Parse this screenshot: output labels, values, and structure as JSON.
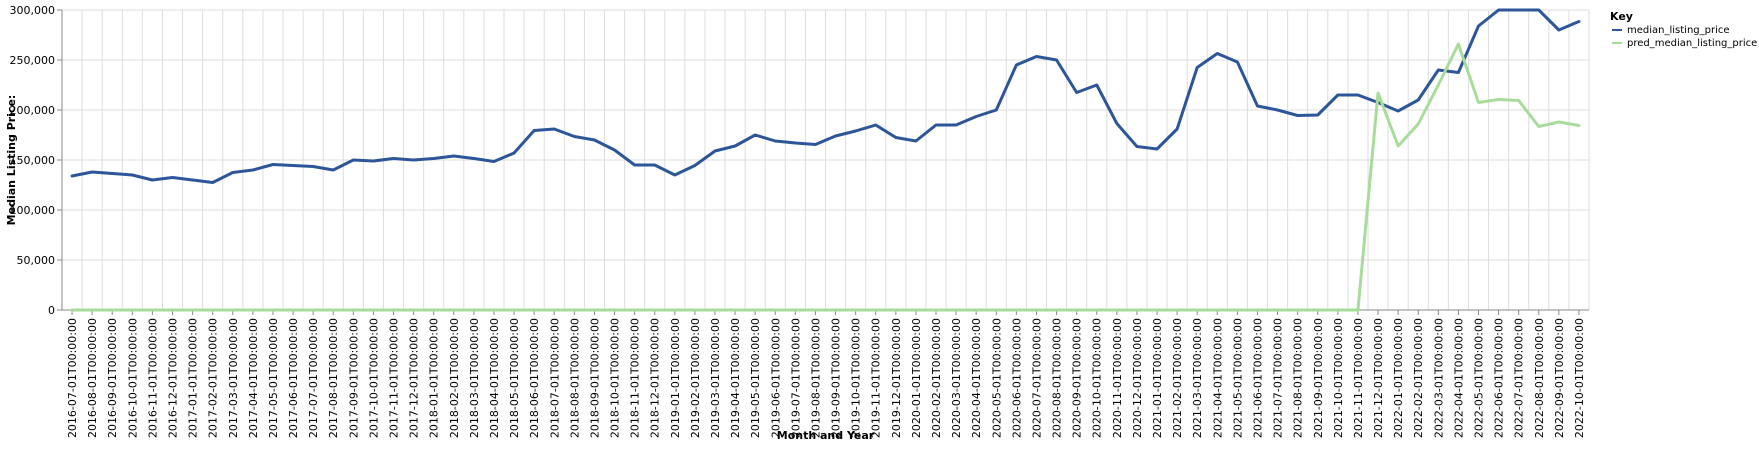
{
  "chart_data": {
    "type": "line",
    "title": "",
    "xlabel": "Month and Year",
    "ylabel": "Median Listing Price:",
    "ylim": [
      0,
      300000
    ],
    "yticks": [
      0,
      50000,
      100000,
      150000,
      200000,
      250000,
      300000
    ],
    "ytick_labels": [
      "0",
      "50,000",
      "100,000",
      "150,000",
      "200,000",
      "250,000",
      "300,000"
    ],
    "grid": true,
    "legend": {
      "title": "Key",
      "placement": "top-right"
    },
    "x": [
      "2016-07-01T00:00:00",
      "2016-08-01T00:00:00",
      "2016-09-01T00:00:00",
      "2016-10-01T00:00:00",
      "2016-11-01T00:00:00",
      "2016-12-01T00:00:00",
      "2017-01-01T00:00:00",
      "2017-02-01T00:00:00",
      "2017-03-01T00:00:00",
      "2017-04-01T00:00:00",
      "2017-05-01T00:00:00",
      "2017-06-01T00:00:00",
      "2017-07-01T00:00:00",
      "2017-08-01T00:00:00",
      "2017-09-01T00:00:00",
      "2017-10-01T00:00:00",
      "2017-11-01T00:00:00",
      "2017-12-01T00:00:00",
      "2018-01-01T00:00:00",
      "2018-02-01T00:00:00",
      "2018-03-01T00:00:00",
      "2018-04-01T00:00:00",
      "2018-05-01T00:00:00",
      "2018-06-01T00:00:00",
      "2018-07-01T00:00:00",
      "2018-08-01T00:00:00",
      "2018-09-01T00:00:00",
      "2018-10-01T00:00:00",
      "2018-11-01T00:00:00",
      "2018-12-01T00:00:00",
      "2019-01-01T00:00:00",
      "2019-02-01T00:00:00",
      "2019-03-01T00:00:00",
      "2019-04-01T00:00:00",
      "2019-05-01T00:00:00",
      "2019-06-01T00:00:00",
      "2019-07-01T00:00:00",
      "2019-08-01T00:00:00",
      "2019-09-01T00:00:00",
      "2019-10-01T00:00:00",
      "2019-11-01T00:00:00",
      "2019-12-01T00:00:00",
      "2020-01-01T00:00:00",
      "2020-02-01T00:00:00",
      "2020-03-01T00:00:00",
      "2020-04-01T00:00:00",
      "2020-05-01T00:00:00",
      "2020-06-01T00:00:00",
      "2020-07-01T00:00:00",
      "2020-08-01T00:00:00",
      "2020-09-01T00:00:00",
      "2020-10-01T00:00:00",
      "2020-11-01T00:00:00",
      "2020-12-01T00:00:00",
      "2021-01-01T00:00:00",
      "2021-02-01T00:00:00",
      "2021-03-01T00:00:00",
      "2021-04-01T00:00:00",
      "2021-05-01T00:00:00",
      "2021-06-01T00:00:00",
      "2021-07-01T00:00:00",
      "2021-08-01T00:00:00",
      "2021-09-01T00:00:00",
      "2021-10-01T00:00:00",
      "2021-11-01T00:00:00",
      "2021-12-01T00:00:00",
      "2022-01-01T00:00:00",
      "2022-02-01T00:00:00",
      "2022-03-01T00:00:00",
      "2022-04-01T00:00:00",
      "2022-05-01T00:00:00",
      "2022-06-01T00:00:00",
      "2022-07-01T00:00:00",
      "2022-08-01T00:00:00",
      "2022-09-01T00:00:00",
      "2022-10-01T00:00:00"
    ],
    "series": [
      {
        "name": "median_listing_price",
        "color": "#2d5599",
        "values": [
          134000,
          138000,
          136500,
          135000,
          130000,
          132500,
          130000,
          127500,
          137500,
          140000,
          145500,
          144500,
          143500,
          140000,
          150000,
          149000,
          151500,
          150000,
          151500,
          154000,
          151500,
          148500,
          157000,
          179500,
          181000,
          173500,
          170000,
          160000,
          145000,
          145000,
          135000,
          144500,
          159000,
          164000,
          175000,
          169000,
          167000,
          165500,
          174000,
          179000,
          185000,
          172500,
          169000,
          185000,
          185000,
          193500,
          200000,
          245000,
          253500,
          250000,
          217500,
          225000,
          186500,
          163500,
          161000,
          181000,
          242500,
          256500,
          248000,
          204000,
          200000,
          194500,
          195000,
          215000,
          215000,
          207500,
          199000,
          210000,
          240000,
          237500,
          284000,
          300000,
          300000,
          300000,
          280000,
          288500
        ]
      },
      {
        "name": "pred_median_listing_price",
        "color": "#a8dc9a",
        "values": [
          0,
          0,
          0,
          0,
          0,
          0,
          0,
          0,
          0,
          0,
          0,
          0,
          0,
          0,
          0,
          0,
          0,
          0,
          0,
          0,
          0,
          0,
          0,
          0,
          0,
          0,
          0,
          0,
          0,
          0,
          0,
          0,
          0,
          0,
          0,
          0,
          0,
          0,
          0,
          0,
          0,
          0,
          0,
          0,
          0,
          0,
          0,
          0,
          0,
          0,
          0,
          0,
          0,
          0,
          0,
          0,
          0,
          0,
          0,
          0,
          0,
          0,
          0,
          0,
          0,
          217000,
          164000,
          186000,
          225000,
          266000,
          207500,
          210500,
          209500,
          183500,
          188000,
          184500
        ]
      }
    ]
  }
}
